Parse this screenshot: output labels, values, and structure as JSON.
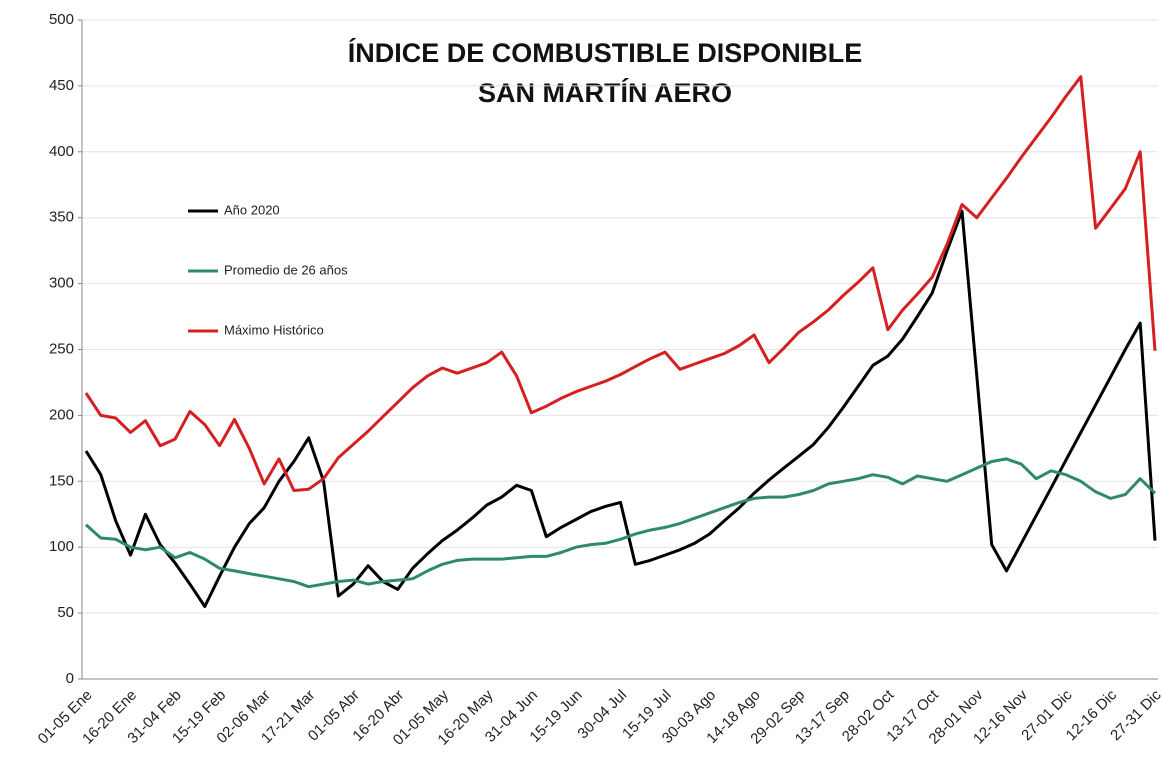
{
  "chart_data": {
    "type": "line",
    "title_lines": [
      "ÍNDICE DE COMBUSTIBLE DISPONIBLE",
      "SAN MARTÍN AERO"
    ],
    "categories": [
      "01-05 Ene",
      null,
      null,
      "16-20 Ene",
      null,
      null,
      "31-04 Feb",
      null,
      null,
      "15-19 Feb",
      null,
      null,
      "02-06 Mar",
      null,
      null,
      "17-21 Mar",
      null,
      null,
      "01-05 Abr",
      null,
      null,
      "16-20 Abr",
      null,
      null,
      "01-05 May",
      null,
      null,
      "16-20 May",
      null,
      null,
      "31-04 Jun",
      null,
      null,
      "15-19 Jun",
      null,
      null,
      "30-04 Jul",
      null,
      null,
      "15-19 Jul",
      null,
      null,
      "30-03 Ago",
      null,
      null,
      "14-18 Ago",
      null,
      null,
      "29-02 Sep",
      null,
      null,
      "13-17 Sep",
      null,
      null,
      "28-02 Oct",
      null,
      null,
      "13-17 Oct",
      null,
      null,
      "28-01 Nov",
      null,
      null,
      "12-16 Nov",
      null,
      null,
      "27-01 Dic",
      null,
      null,
      "12-16 Dic",
      null,
      null,
      "27-31 Dic"
    ],
    "series": [
      {
        "name": "Año 2020",
        "color": "#000000",
        "values": [
          173,
          155,
          120,
          94,
          125,
          102,
          88,
          72,
          55,
          78,
          100,
          118,
          130,
          150,
          165,
          183,
          150,
          63,
          72,
          86,
          74,
          68,
          84,
          95,
          105,
          113,
          122,
          132,
          138,
          147,
          143,
          108,
          115,
          121,
          127,
          131,
          134,
          87,
          90,
          94,
          98,
          103,
          110,
          120,
          130,
          141,
          151,
          160,
          169,
          178,
          191,
          206,
          222,
          238,
          245,
          258,
          275,
          293,
          325,
          355,
          230,
          102,
          82,
          103,
          124,
          145,
          166,
          187,
          208,
          229,
          250,
          270,
          105
        ]
      },
      {
        "name": "Promedio de 26 años",
        "color": "#2e8b63",
        "values": [
          117,
          107,
          106,
          100,
          98,
          100,
          92,
          96,
          91,
          84,
          82,
          80,
          78,
          76,
          74,
          70,
          72,
          74,
          75,
          72,
          74,
          75,
          76,
          82,
          87,
          90,
          91,
          91,
          91,
          92,
          93,
          93,
          96,
          100,
          102,
          103,
          106,
          110,
          113,
          115,
          118,
          122,
          126,
          130,
          134,
          137,
          138,
          138,
          140,
          143,
          148,
          150,
          152,
          155,
          153,
          148,
          154,
          152,
          150,
          155,
          160,
          165,
          167,
          163,
          152,
          158,
          155,
          150,
          142,
          137,
          140,
          152,
          141
        ]
      },
      {
        "name": "Máximo Histórico",
        "color": "#d42020",
        "values": [
          217,
          200,
          198,
          187,
          196,
          177,
          182,
          203,
          193,
          177,
          197,
          175,
          148,
          167,
          143,
          144,
          152,
          168,
          178,
          188,
          199,
          210,
          221,
          230,
          236,
          232,
          236,
          240,
          248,
          230,
          202,
          207,
          213,
          218,
          222,
          226,
          231,
          237,
          243,
          248,
          235,
          239,
          243,
          247,
          253,
          261,
          240,
          251,
          263,
          271,
          280,
          291,
          301,
          312,
          265,
          280,
          292,
          305,
          330,
          360,
          350,
          365,
          380,
          396,
          411,
          426,
          442,
          457,
          342,
          357,
          372,
          400,
          249
        ]
      }
    ],
    "ylim": [
      0,
      500
    ],
    "yticks": [
      0,
      50,
      100,
      150,
      200,
      250,
      300,
      350,
      400,
      450,
      500
    ],
    "grid": true
  }
}
